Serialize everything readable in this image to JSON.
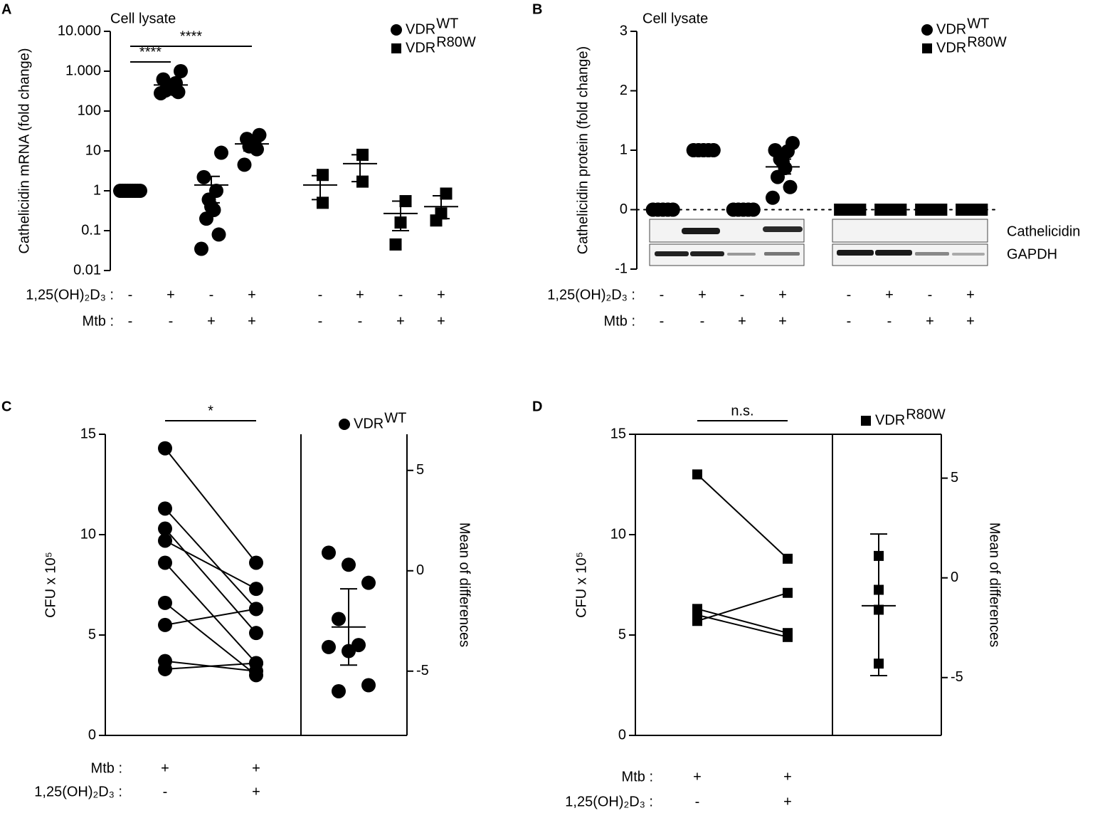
{
  "chart_data": [
    {
      "type": "dot",
      "panel": "A",
      "title": "Cell lysate",
      "ylabel": "Cathelicidin mRNA (fold change)",
      "yscale": "log",
      "ylim": [
        0.01,
        10000
      ],
      "yticks": [
        {
          "value": 10000,
          "label": "10.000"
        },
        {
          "value": 1000,
          "label": "1.000"
        },
        100,
        10,
        1,
        0.1,
        0.01
      ],
      "series": [
        {
          "name": "VDR",
          "sup": "WT",
          "marker": "circle",
          "color": "#000000"
        },
        {
          "name": "VDR",
          "sup": "R80W",
          "marker": "square",
          "color": "#000000"
        }
      ],
      "groups": [
        {
          "series": 0,
          "values": [
            1,
            1,
            1,
            1,
            1,
            1,
            1,
            1,
            1
          ],
          "mean": 1
        },
        {
          "series": 0,
          "values": [
            1000,
            620,
            500,
            450,
            400,
            360,
            330,
            300,
            280
          ],
          "mean": 450,
          "error_bar": [
            370,
            560
          ]
        },
        {
          "series": 0,
          "values": [
            9,
            2.2,
            1,
            0.6,
            0.4,
            0.33,
            0.2,
            0.08,
            0.035
          ],
          "mean": 1.4,
          "error_bar": [
            0.5,
            2.3
          ]
        },
        {
          "series": 0,
          "values": [
            25,
            20,
            16,
            14,
            13,
            11,
            4.5
          ],
          "mean": 15,
          "error_bar": [
            10,
            20
          ]
        },
        {
          "series": 1,
          "values": [
            2.5,
            0.5
          ],
          "mean": 1.4,
          "error_bar": [
            0.6,
            2.4
          ]
        },
        {
          "series": 1,
          "values": [
            8,
            1.7
          ],
          "mean": 4.8,
          "error_bar": [
            1.7,
            8
          ]
        },
        {
          "series": 1,
          "values": [
            0.55,
            0.16,
            0.045
          ],
          "mean": 0.27,
          "error_bar": [
            0.1,
            0.55
          ]
        },
        {
          "series": 1,
          "values": [
            0.85,
            0.27,
            0.18
          ],
          "mean": 0.4,
          "error_bar": [
            0.2,
            0.75
          ]
        }
      ],
      "conditions": [
        {
          "label": "1,25(OH)₂D₃ :",
          "values": [
            "-",
            "+",
            "-",
            "+",
            "-",
            "+",
            "-",
            "+"
          ]
        },
        {
          "label": "Mtb :",
          "values": [
            "-",
            "-",
            "+",
            "+",
            "-",
            "-",
            "+",
            "+"
          ]
        }
      ],
      "annotations": [
        {
          "label": "****",
          "from": 0,
          "to": 1
        },
        {
          "label": "****",
          "from": 0,
          "to": 3
        }
      ]
    },
    {
      "type": "dot",
      "panel": "B",
      "title": "Cell lysate",
      "ylabel": "Cathelicidin protein (fold change)",
      "yscale": "linear",
      "ylim": [
        -1,
        3
      ],
      "yticks": [
        -1,
        0,
        1,
        2,
        3
      ],
      "reference_line": 0,
      "blot_labels": [
        "Cathelicidin",
        "GAPDH"
      ],
      "series": [
        {
          "name": "VDR",
          "sup": "WT",
          "marker": "circle",
          "color": "#000000"
        },
        {
          "name": "VDR",
          "sup": "R80W",
          "marker": "square",
          "color": "#000000"
        }
      ],
      "groups": [
        {
          "series": 0,
          "values": [
            0,
            0,
            0,
            0,
            0,
            0,
            0,
            0,
            0,
            0
          ]
        },
        {
          "series": 0,
          "values": [
            1,
            1,
            1,
            1,
            1,
            1,
            1,
            1,
            1,
            1
          ]
        },
        {
          "series": 0,
          "values": [
            0,
            0,
            0,
            0,
            0,
            0,
            0,
            0,
            0,
            0
          ]
        },
        {
          "series": 0,
          "values": [
            1.12,
            1.0,
            0.98,
            0.85,
            0.8,
            0.7,
            0.55,
            0.38,
            0.2
          ],
          "mean": 0.72,
          "error_bar": [
            0.6,
            0.85
          ]
        },
        {
          "series": 1,
          "values": [
            0,
            0,
            0,
            0,
            0,
            0,
            0,
            0,
            0,
            0
          ]
        },
        {
          "series": 1,
          "values": [
            0,
            0,
            0,
            0,
            0,
            0,
            0,
            0,
            0,
            0
          ]
        },
        {
          "series": 1,
          "values": [
            0,
            0,
            0,
            0,
            0,
            0,
            0,
            0,
            0,
            0
          ]
        },
        {
          "series": 1,
          "values": [
            0,
            0,
            0,
            0,
            0,
            0,
            0,
            0,
            0,
            0
          ]
        }
      ],
      "conditions": [
        {
          "label": "1,25(OH)₂D₃ :",
          "values": [
            "-",
            "+",
            "-",
            "+",
            "-",
            "+",
            "-",
            "+"
          ]
        },
        {
          "label": "Mtb :",
          "values": [
            "-",
            "-",
            "+",
            "+",
            "-",
            "-",
            "+",
            "+"
          ]
        }
      ]
    },
    {
      "type": "paired",
      "panel": "C",
      "ylabel": "CFU  x  10⁵",
      "y2label": "Mean of differences",
      "ylim": [
        0,
        15
      ],
      "yticks": [
        0,
        5,
        10,
        15
      ],
      "y2lim": [
        -8.2,
        6.8
      ],
      "y2ticks": [
        -5,
        0,
        5
      ],
      "series": [
        {
          "name": "VDR",
          "sup": "WT",
          "marker": "circle",
          "color": "#000000"
        }
      ],
      "before": [
        14.3,
        11.3,
        10.3,
        9.7,
        8.6,
        6.6,
        5.5,
        3.7,
        3.3
      ],
      "after": [
        8.6,
        6.3,
        5.1,
        7.3,
        3.6,
        3.0,
        6.3,
        3.2,
        3.6
      ],
      "differences": {
        "values": [
          0.9,
          0.3,
          -0.6,
          -2.4,
          -3.7,
          -3.8,
          -4.0,
          -5.7,
          -6.0
        ],
        "mean": -2.8,
        "error_bar": [
          -4.7,
          -0.9
        ]
      },
      "conditions": [
        {
          "label": "Mtb :",
          "values": [
            "+",
            "+"
          ]
        },
        {
          "label": "1,25(OH)₂D₃ :",
          "values": [
            "-",
            "+"
          ]
        }
      ],
      "annotations": [
        {
          "label": "*",
          "from": 0,
          "to": 1
        }
      ]
    },
    {
      "type": "paired",
      "panel": "D",
      "ylabel": "CFU  x  10⁵",
      "y2label": "Mean of differences",
      "ylim": [
        0,
        15
      ],
      "yticks": [
        0,
        5,
        10,
        15
      ],
      "y2lim": [
        -7.9,
        7.2
      ],
      "y2ticks": [
        -5,
        0,
        5
      ],
      "series": [
        {
          "name": "VDR",
          "sup": "R80W",
          "marker": "square",
          "color": "#000000"
        }
      ],
      "before": [
        13,
        5.7,
        6.3,
        6.0
      ],
      "after": [
        8.8,
        7.1,
        5.1,
        4.9
      ],
      "differences": {
        "values": [
          1.1,
          -0.6,
          -1.6,
          -4.3
        ],
        "mean": -1.4,
        "error_bar": [
          -4.9,
          2.2
        ]
      },
      "conditions": [
        {
          "label": "Mtb :",
          "values": [
            "+",
            "+"
          ]
        },
        {
          "label": "1,25(OH)₂D₃ :",
          "values": [
            "-",
            "+"
          ]
        }
      ],
      "annotations": [
        {
          "label": "n.s.",
          "from": 0,
          "to": 1
        }
      ]
    }
  ]
}
